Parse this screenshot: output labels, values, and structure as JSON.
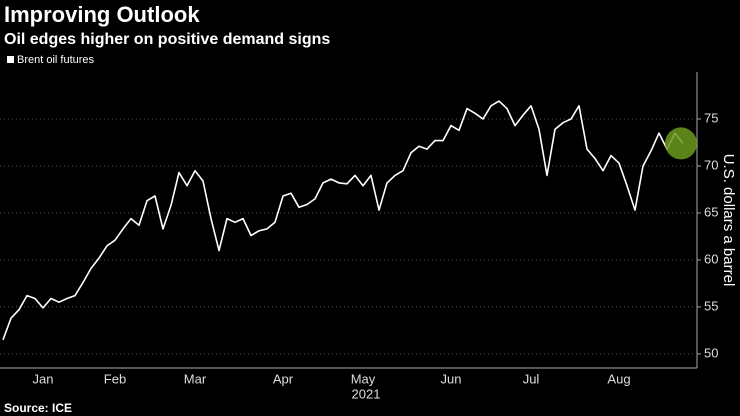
{
  "chart_data": {
    "type": "line",
    "title": "Improving Outlook",
    "subtitle": "Oil edges higher on positive demand signs",
    "x_label": "2021",
    "y_label": "U.S. dollars a barrel",
    "source": "Source: ICE",
    "categories": [
      null,
      null,
      null,
      null,
      null,
      "Jan",
      null,
      null,
      null,
      null,
      null,
      null,
      null,
      null,
      "Feb",
      null,
      null,
      null,
      null,
      null,
      null,
      null,
      null,
      null,
      "Mar",
      null,
      null,
      null,
      null,
      null,
      null,
      null,
      null,
      null,
      null,
      "Apr",
      null,
      null,
      null,
      null,
      null,
      null,
      null,
      null,
      null,
      "May",
      null,
      null,
      null,
      null,
      null,
      null,
      null,
      null,
      null,
      null,
      "Jun",
      null,
      null,
      null,
      null,
      null,
      null,
      null,
      null,
      null,
      "Jul",
      null,
      null,
      null,
      null,
      null,
      null,
      null,
      null,
      null,
      null,
      "Aug",
      null,
      null,
      null,
      null,
      null,
      null,
      null,
      null
    ],
    "series": [
      {
        "name": "Brent oil futures",
        "color": "#ffffff",
        "values": [
          51.5,
          53.8,
          54.7,
          56.2,
          55.9,
          54.9,
          55.9,
          55.5,
          55.9,
          56.2,
          57.6,
          59.1,
          60.2,
          61.5,
          62.1,
          63.3,
          64.4,
          63.7,
          66.3,
          66.8,
          63.3,
          65.8,
          69.3,
          67.9,
          69.5,
          68.4,
          64.4,
          61.0,
          64.4,
          64.0,
          64.4,
          62.6,
          63.1,
          63.3,
          64.0,
          66.8,
          67.1,
          65.6,
          65.9,
          66.5,
          68.2,
          68.6,
          68.2,
          68.1,
          69.0,
          67.9,
          69.0,
          65.3,
          68.2,
          69.0,
          69.5,
          71.4,
          72.1,
          71.8,
          72.7,
          72.7,
          74.3,
          73.8,
          76.1,
          75.6,
          75.0,
          76.4,
          76.9,
          76.1,
          74.3,
          75.4,
          76.4,
          73.9,
          69.0,
          73.9,
          74.6,
          75.0,
          76.4,
          71.8,
          70.8,
          69.5,
          71.1,
          70.3,
          67.9,
          65.3,
          70.0,
          71.6,
          73.5,
          71.8,
          73.5,
          72.4
        ]
      }
    ],
    "ylim": [
      48.5,
      80
    ],
    "yticks": [
      50,
      55,
      60,
      65,
      70,
      75
    ],
    "grid": true
  }
}
